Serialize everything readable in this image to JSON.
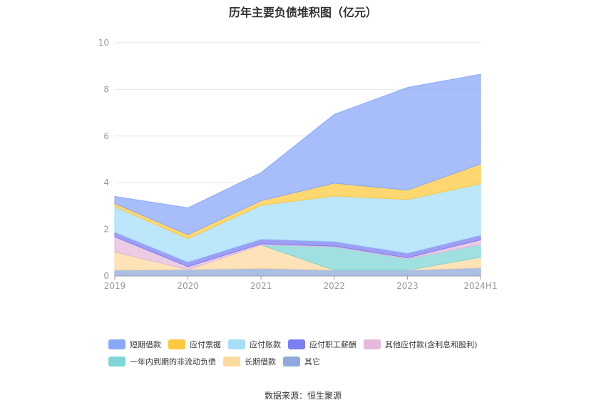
{
  "title": "历年主要负债堆积图（亿元）",
  "source": "数据来源：恒生聚源",
  "chart_data": {
    "type": "area",
    "stacked": true,
    "categories": [
      "2019",
      "2020",
      "2021",
      "2022",
      "2023",
      "2024H1"
    ],
    "ylim": [
      0,
      10
    ],
    "yticks": [
      0,
      2,
      4,
      6,
      8,
      10
    ],
    "grid": true,
    "legend_position": "bottom",
    "series": [
      {
        "name": "其它",
        "color": "#8fa9dc",
        "values": [
          0.25,
          0.27,
          0.33,
          0.25,
          0.25,
          0.35
        ]
      },
      {
        "name": "长期借款",
        "color": "#fdd9a0",
        "values": [
          0.78,
          0.0,
          1.0,
          0.0,
          0.0,
          0.45
        ]
      },
      {
        "name": "一年内到期的非流动负债",
        "color": "#80d5d5",
        "values": [
          0.0,
          0.0,
          0.0,
          1.0,
          0.48,
          0.55
        ]
      },
      {
        "name": "其他应付款(含利息和股利)",
        "color": "#e6b9dc",
        "values": [
          0.65,
          0.13,
          0.05,
          0.03,
          0.05,
          0.2
        ]
      },
      {
        "name": "应付职工薪酬",
        "color": "#7b7ff0",
        "values": [
          0.2,
          0.2,
          0.2,
          0.2,
          0.2,
          0.2
        ]
      },
      {
        "name": "应付账款",
        "color": "#a6def8",
        "values": [
          1.1,
          1.0,
          1.45,
          1.95,
          2.3,
          2.2
        ]
      },
      {
        "name": "应付票据",
        "color": "#fdc940",
        "values": [
          0.13,
          0.17,
          0.2,
          0.55,
          0.4,
          0.85
        ]
      },
      {
        "name": "短期借款",
        "color": "#8aa8f8",
        "values": [
          0.3,
          1.15,
          1.2,
          2.95,
          4.4,
          3.85
        ]
      }
    ]
  },
  "legend_rows": [
    [
      "短期借款",
      "应付票据",
      "应付账款",
      "应付职工薪酬",
      "其他应付款(含利息和股利)"
    ],
    [
      "一年内到期的非流动负债",
      "长期借款",
      "其它"
    ]
  ]
}
